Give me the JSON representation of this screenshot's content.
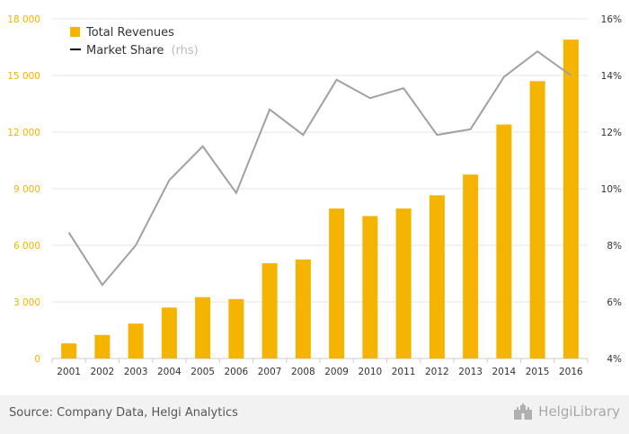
{
  "chart_data": {
    "type": "bar",
    "categories": [
      "2001",
      "2002",
      "2003",
      "2004",
      "2005",
      "2006",
      "2007",
      "2008",
      "2009",
      "2010",
      "2011",
      "2012",
      "2013",
      "2014",
      "2015",
      "2016"
    ],
    "series": [
      {
        "name": "Total Revenues",
        "type": "bar",
        "axis": "left",
        "color": "#f5b400",
        "values": [
          800,
          1250,
          1850,
          2700,
          3250,
          3150,
          5050,
          5250,
          7950,
          7550,
          7950,
          8650,
          9750,
          12400,
          14700,
          16900
        ]
      },
      {
        "name": "Market Share",
        "name_suffix": "(rhs)",
        "type": "line",
        "axis": "right",
        "color": "#a0a0a0",
        "values": [
          8.45,
          6.6,
          8.0,
          10.3,
          11.5,
          9.85,
          12.8,
          11.9,
          13.85,
          13.2,
          13.55,
          11.9,
          12.1,
          13.95,
          14.85,
          14.0
        ]
      }
    ],
    "y_left": {
      "ticks": [
        0,
        3000,
        6000,
        9000,
        12000,
        15000,
        18000
      ],
      "tick_labels": [
        "0",
        "3 000",
        "6 000",
        "9 000",
        "12 000",
        "15 000",
        "18 000"
      ],
      "ylim": [
        0,
        18000
      ],
      "color": "#f5b400"
    },
    "y_right": {
      "ticks": [
        4,
        6,
        8,
        10,
        12,
        14,
        16
      ],
      "tick_labels": [
        "4%",
        "6%",
        "8%",
        "10%",
        "12%",
        "14%",
        "16%"
      ],
      "ylim": [
        4,
        16
      ],
      "color": "#333333"
    },
    "grid": true,
    "legend": {
      "position": "top-left"
    }
  },
  "footer": {
    "source": "Source: Company Data, Helgi Analytics",
    "brand": "HelgiLibrary",
    "brand_icon": "castle-icon"
  }
}
